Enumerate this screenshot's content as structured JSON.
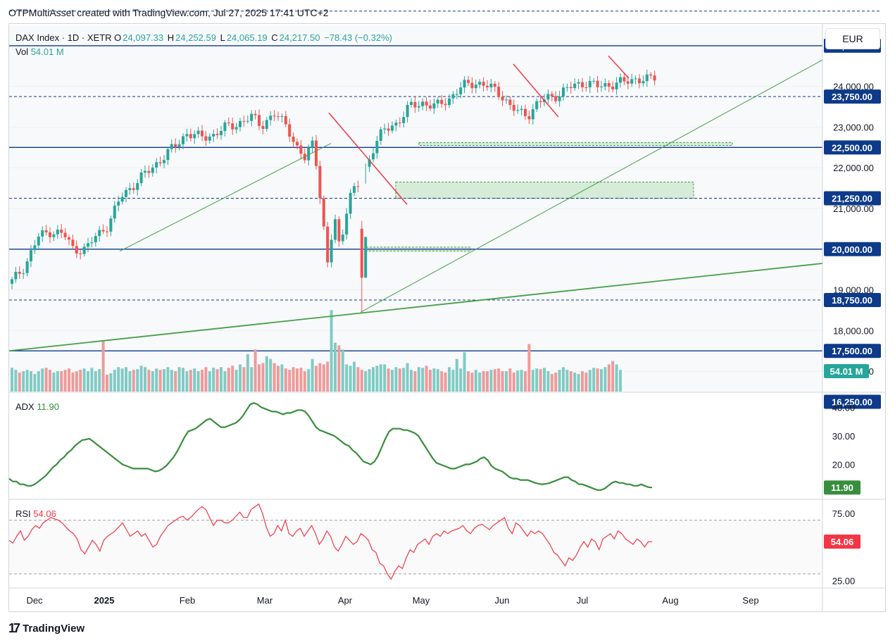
{
  "header": {
    "caption": "OTPMultiAsset created with TradingView.com, Jul 27, 2025 17:41 UTC+2",
    "currency_button": "EUR",
    "symbol": "DAX Index · 1D · XETR",
    "ohlc": [
      {
        "key": "O",
        "value": "24,097.33"
      },
      {
        "key": "H",
        "value": "24,252.59"
      },
      {
        "key": "L",
        "value": "24,065.19"
      },
      {
        "key": "C",
        "value": "24,217.50"
      }
    ],
    "change": "−78.43 (−0.32%)",
    "vol_label": "Vol",
    "vol_value": "54.01 M"
  },
  "colors": {
    "up": "#26a69a",
    "down": "#ef5350",
    "level_line": "#0d3a8a",
    "trend_green": "#43a047",
    "resistance_red": "#f23645",
    "adx": "#388e3c",
    "rsi": "#f23645",
    "zone_fill": "#c8e6c9"
  },
  "chart_data": [
    {
      "type": "candlestick",
      "title": "DAX Index · 1D · XETR",
      "ylim": [
        16500,
        25500
      ],
      "x_labels": [
        "Dec",
        "2025",
        "Feb",
        "Mar",
        "Apr",
        "May",
        "Jun",
        "Jul",
        "Aug",
        "Sep"
      ],
      "y_ticks": [
        {
          "value": 24000,
          "label": "24,000.00"
        },
        {
          "value": 23000,
          "label": "23,000.00"
        },
        {
          "value": 22000,
          "label": "22,000.00"
        },
        {
          "value": 21000,
          "label": "21,000.00"
        },
        {
          "value": 19000,
          "label": "19,000.00"
        },
        {
          "value": 18000,
          "label": "18,000.00"
        },
        {
          "value": 17000,
          "label": "17,000.00"
        }
      ],
      "levels": [
        {
          "value": 25000,
          "label": "25,000.00",
          "style": "solid"
        },
        {
          "value": 23750,
          "label": "23,750.00",
          "style": "dashed"
        },
        {
          "value": 22500,
          "label": "22,500.00",
          "style": "solid"
        },
        {
          "value": 21250,
          "label": "21,250.00",
          "style": "dashed"
        },
        {
          "value": 20000,
          "label": "20,000.00",
          "style": "solid"
        },
        {
          "value": 18750,
          "label": "18,750.00",
          "style": "dashed"
        },
        {
          "value": 17500,
          "label": "17,500.00",
          "style": "solid"
        },
        {
          "value": 16250,
          "label": "16,250.00",
          "style": "dashed"
        }
      ],
      "top_dashed_level": 25850,
      "last_close": 24217.5,
      "volume_label": "54.01 M",
      "volume_values": [
        35,
        32,
        28,
        30,
        32,
        30,
        26,
        30,
        34,
        35,
        32,
        28,
        30,
        30,
        32,
        34,
        28,
        30,
        32,
        34,
        30,
        35,
        30,
        33,
        75,
        25,
        27,
        32,
        36,
        34,
        36,
        30,
        32,
        33,
        38,
        36,
        32,
        30,
        34,
        32,
        33,
        36,
        32,
        30,
        36,
        35,
        30,
        32,
        34,
        30,
        32,
        36,
        30,
        35,
        33,
        36,
        30,
        35,
        38,
        32,
        40,
        36,
        55,
        36,
        62,
        40,
        42,
        52,
        48,
        42,
        38,
        40,
        34,
        32,
        36,
        34,
        35,
        30,
        33,
        48,
        38,
        42,
        40,
        44,
        120,
        72,
        68,
        62,
        40,
        38,
        44,
        36,
        32,
        30,
        33,
        36,
        38,
        40,
        40,
        34,
        32,
        36,
        34,
        35,
        42,
        32,
        30,
        36,
        35,
        38,
        32,
        34,
        33,
        30,
        28,
        36,
        32,
        48,
        34,
        58,
        30,
        28,
        32,
        28,
        30,
        30,
        32,
        33,
        34,
        30,
        30,
        34,
        28,
        31,
        32,
        30,
        70,
        32,
        34,
        33,
        35,
        30,
        26,
        28,
        32,
        36,
        32,
        30,
        28,
        26,
        30,
        28,
        32,
        35,
        34,
        33,
        36,
        40,
        45,
        40,
        32
      ]
    },
    {
      "type": "line",
      "title": "ADX",
      "value_label": "11.90",
      "ylim": [
        8,
        45
      ],
      "y_ticks": [
        {
          "value": 40,
          "label": "40.00"
        },
        {
          "value": 30,
          "label": "30.00"
        },
        {
          "value": 20,
          "label": "20.00"
        }
      ],
      "values": [
        15,
        14,
        14,
        13,
        13,
        12.5,
        12.5,
        13,
        14,
        15,
        16,
        17.5,
        19,
        20,
        21.5,
        22.5,
        24,
        25,
        26.5,
        27.5,
        28.5,
        28.7,
        29,
        28,
        27,
        26,
        25,
        24,
        23,
        22,
        21,
        20,
        19.5,
        19,
        18.5,
        18.5,
        18.5,
        18.5,
        18.5,
        18,
        17.5,
        17.8,
        18.5,
        19.5,
        21,
        22.5,
        24.5,
        27,
        29.5,
        31.5,
        32,
        32.5,
        33.5,
        34.5,
        35.5,
        36,
        35,
        34,
        33,
        33,
        33.5,
        34,
        34.5,
        35.5,
        37,
        39,
        41,
        41.5,
        41,
        40,
        39.5,
        39,
        38.5,
        38.5,
        38,
        37.5,
        38,
        38,
        38.5,
        39,
        39,
        38.5,
        37,
        35,
        33,
        32,
        31.5,
        31,
        30.5,
        30,
        29,
        28,
        27,
        26.5,
        25,
        24,
        22.5,
        21,
        20.5,
        20,
        21,
        23,
        26,
        29,
        31.5,
        32.5,
        32.5,
        32.5,
        32,
        32,
        31.5,
        31,
        30,
        28,
        26,
        24,
        22,
        20.5,
        20,
        19.5,
        19,
        18.5,
        18.5,
        19,
        19.5,
        20,
        20,
        20.5,
        21,
        22,
        22.5,
        21.5,
        19.5,
        18.5,
        18,
        17.5,
        16.5,
        15.5,
        15,
        15,
        14.5,
        14.5,
        14.5,
        14,
        13.5,
        13.2,
        13,
        13.2,
        13.5,
        14,
        14.5,
        15,
        15.5,
        15.5,
        14.5,
        14,
        13,
        13,
        12.5,
        12,
        11.5,
        11,
        11,
        11.5,
        12.5,
        13.5,
        14,
        13.5,
        13.5,
        13,
        13,
        12.5,
        12.5,
        13,
        12.5,
        12,
        11.9
      ]
    },
    {
      "type": "line",
      "title": "RSI",
      "value_label": "54.06",
      "ylim": [
        20,
        85
      ],
      "y_ticks": [
        {
          "value": 75,
          "label": "75.00"
        },
        {
          "value": 25,
          "label": "25.00"
        }
      ],
      "band": [
        70,
        30
      ],
      "values": [
        55,
        53,
        58,
        62,
        55,
        58,
        63,
        66,
        64,
        68,
        70,
        72,
        71,
        70,
        68,
        65,
        62,
        60,
        56,
        48,
        45,
        50,
        55,
        52,
        47,
        55,
        58,
        60,
        62,
        65,
        68,
        63,
        58,
        60,
        62,
        58,
        60,
        55,
        50,
        52,
        58,
        62,
        66,
        68,
        70,
        72,
        73,
        70,
        72,
        75,
        78,
        80,
        78,
        72,
        66,
        70,
        70,
        68,
        68,
        70,
        73,
        76,
        72,
        72,
        78,
        80,
        82,
        75,
        65,
        58,
        60,
        66,
        62,
        70,
        60,
        58,
        62,
        64,
        58,
        62,
        66,
        60,
        52,
        56,
        62,
        58,
        50,
        47,
        52,
        58,
        55,
        52,
        54,
        60,
        58,
        55,
        48,
        46,
        38,
        36,
        30,
        26,
        32,
        36,
        34,
        42,
        48,
        46,
        52,
        54,
        56,
        52,
        58,
        60,
        58,
        62,
        60,
        62,
        63,
        64,
        66,
        62,
        60,
        64,
        66,
        67,
        65,
        63,
        66,
        68,
        70,
        72,
        64,
        60,
        68,
        66,
        62,
        58,
        62,
        60,
        62,
        60,
        56,
        52,
        46,
        44,
        40,
        36,
        42,
        40,
        44,
        50,
        54,
        50,
        56,
        54,
        48,
        56,
        58,
        60,
        56,
        62,
        60,
        56,
        54,
        52,
        56,
        54,
        50,
        54,
        54.06
      ]
    }
  ]
}
